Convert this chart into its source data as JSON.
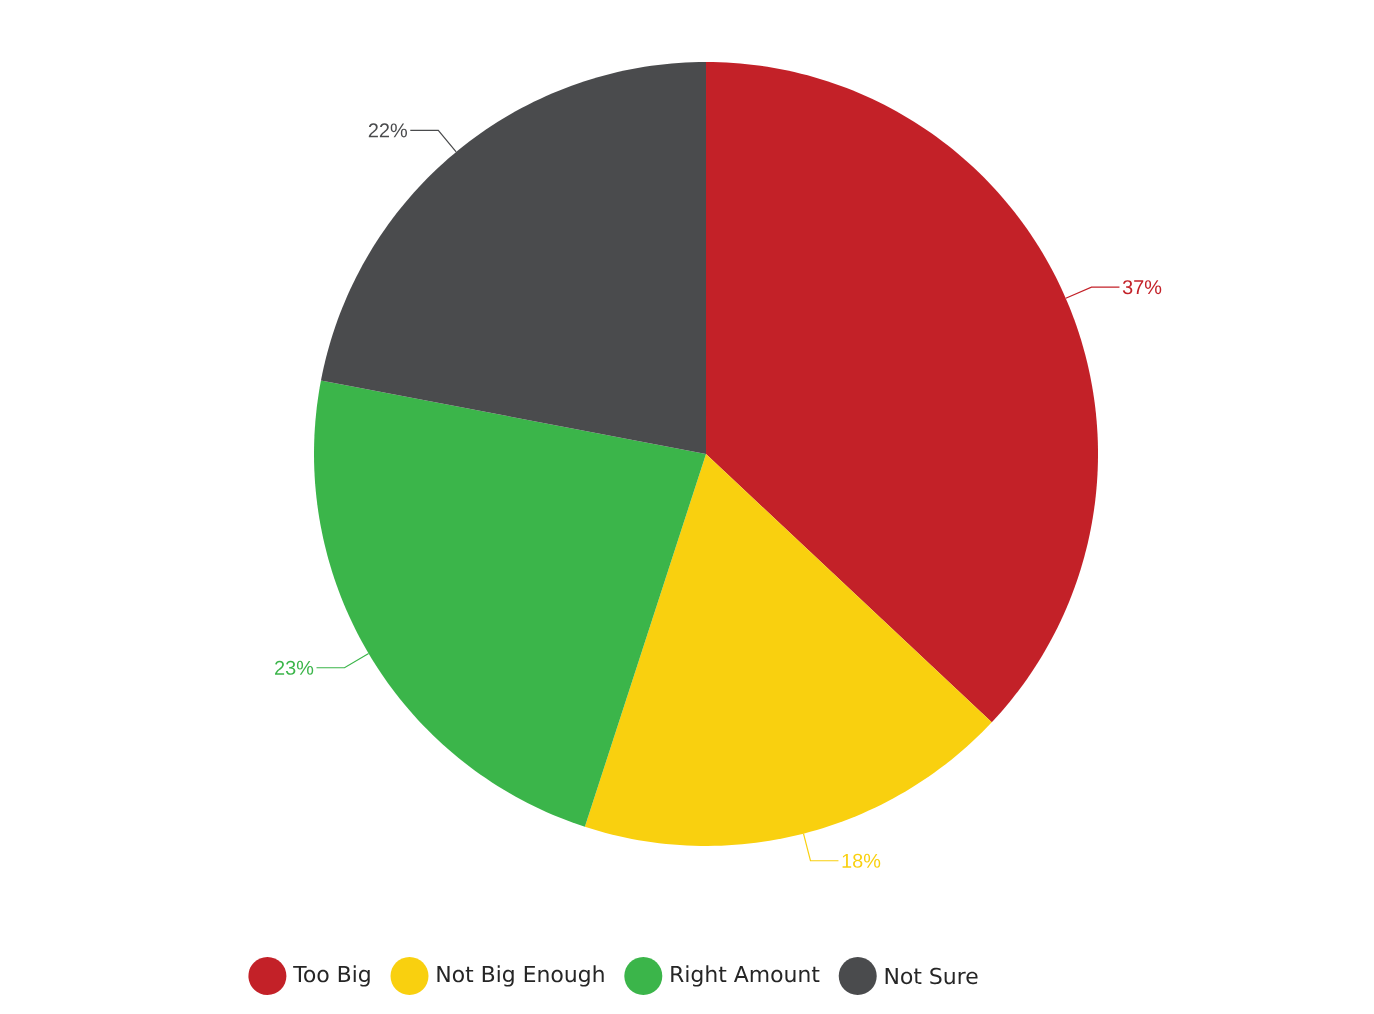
{
  "chart_data": {
    "type": "pie",
    "categories": [
      "Too Big",
      "Not Big Enough",
      "Right Amount",
      "Not Sure"
    ],
    "values": [
      37,
      18,
      23,
      22
    ],
    "value_labels": [
      "37%",
      "18%",
      "23%",
      "22%"
    ],
    "colors": [
      "#c32128",
      "#f9d00f",
      "#3bb54a",
      "#4a4b4d"
    ],
    "legend": "bottom"
  }
}
